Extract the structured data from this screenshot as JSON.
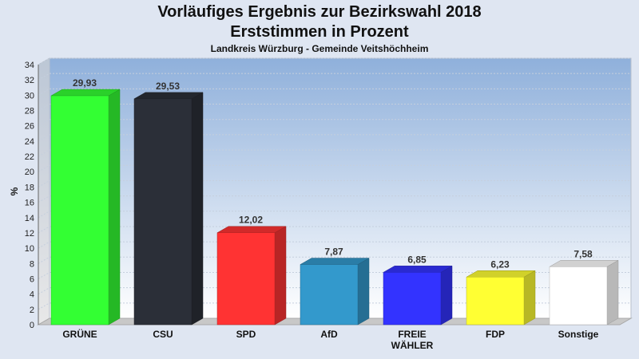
{
  "chart_data": {
    "type": "bar",
    "title": "Vorläufiges Ergebnis zur Bezirkswahl 2018",
    "subtitle": "Erststimmen in Prozent",
    "caption": "Landkreis Würzburg - Gemeinde Veitshöchheim",
    "ylabel": "%",
    "ylim": [
      0,
      34
    ],
    "yticks": [
      0,
      2,
      4,
      6,
      8,
      10,
      12,
      14,
      16,
      18,
      20,
      22,
      24,
      26,
      28,
      30,
      32,
      34
    ],
    "grid": true,
    "categories": [
      "GRÜNE",
      "CSU",
      "SPD",
      "AfD",
      "FREIE WÄHLER",
      "FDP",
      "Sonstige"
    ],
    "category_lines": [
      [
        "GRÜNE"
      ],
      [
        "CSU"
      ],
      [
        "SPD"
      ],
      [
        "AfD"
      ],
      [
        "FREIE",
        "WÄHLER"
      ],
      [
        "FDP"
      ],
      [
        "Sonstige"
      ]
    ],
    "values": [
      29.93,
      29.53,
      12.02,
      7.87,
      6.85,
      6.23,
      7.58
    ],
    "value_labels": [
      "29,93",
      "29,53",
      "12,02",
      "7,87",
      "6,85",
      "6,23",
      "7,58"
    ],
    "colors": [
      "#33ff33",
      "#2b2f38",
      "#ff3333",
      "#3399cc",
      "#3333ff",
      "#ffff33",
      "#ffffff"
    ]
  }
}
